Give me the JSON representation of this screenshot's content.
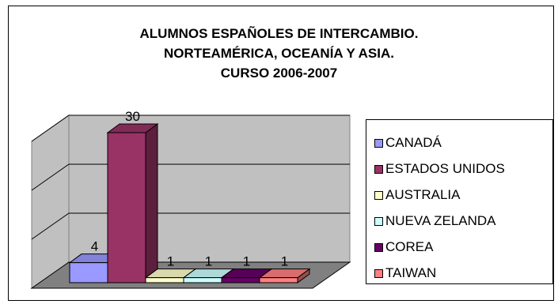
{
  "chart_data": {
    "type": "bar",
    "title_lines": [
      "ALUMNOS ESPAÑOLES DE INTERCAMBIO.",
      "NORTEAMÉRICA, OCEANÍA Y ASIA.",
      "CURSO 2006-2007"
    ],
    "categories": [
      "CANADÁ",
      "ESTADOS UNIDOS",
      "AUSTRALIA",
      "NUEVA ZELANDA",
      "COREA",
      "TAIWAN"
    ],
    "values": [
      4,
      30,
      1,
      1,
      1,
      1
    ],
    "data_labels": [
      "4",
      "30",
      "1",
      "1",
      "1",
      "1"
    ],
    "colors": [
      "#9999FF",
      "#993366",
      "#FFFFCC",
      "#CCFFFF",
      "#660066",
      "#FF8080"
    ],
    "ylim": [
      0,
      30
    ],
    "grid": true,
    "three_d": true,
    "legend_position": "right"
  }
}
